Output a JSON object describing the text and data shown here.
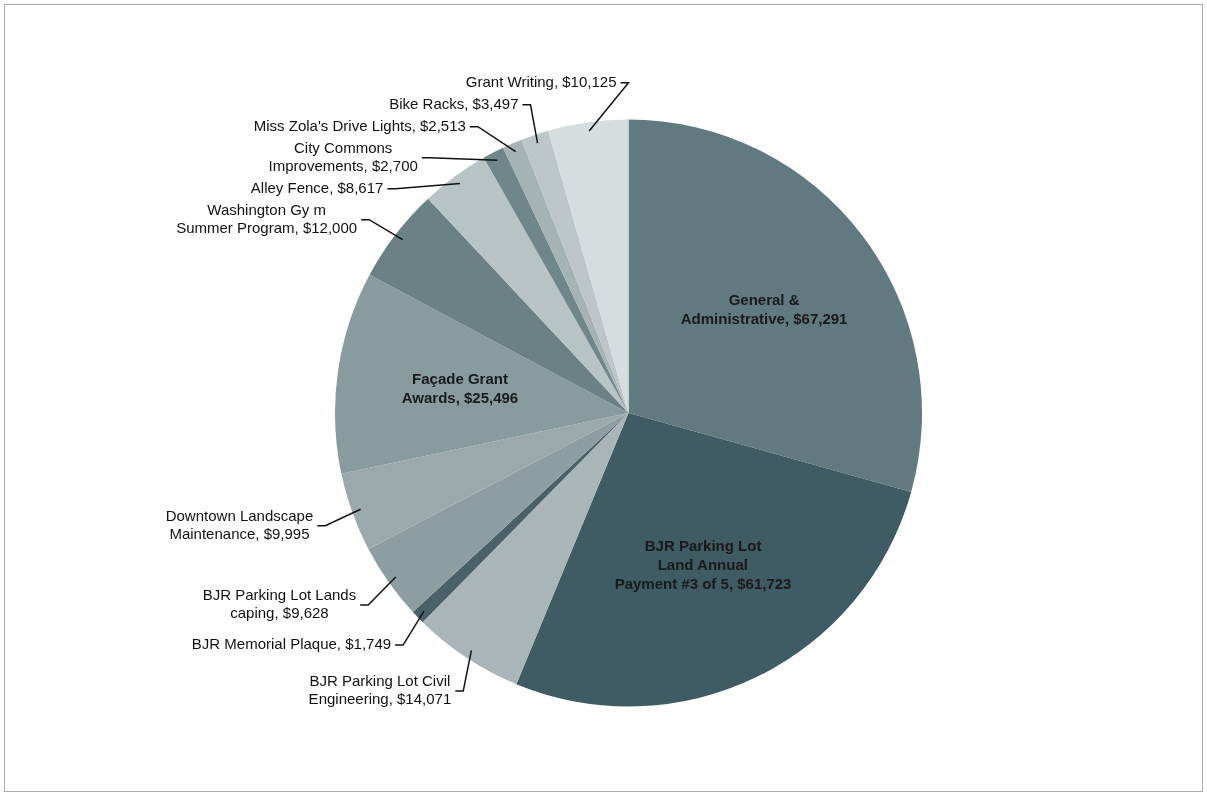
{
  "chart_data": {
    "type": "pie",
    "categories": [
      "General & Administrative",
      "BJR Parking Lot Land Annual Payment #3 of 5",
      "BJR Parking Lot Civil Engineering",
      "BJR Memorial Plaque",
      "BJR Parking Lot Lands caping",
      "Downtown Landscape Maintenance",
      "Façade Grant Awards",
      "Washington Gy m Summer Program",
      "Alley Fence",
      "City Commons Improvements",
      "Miss Zola's Drive Lights",
      "Bike Racks",
      "Grant Writing"
    ],
    "values": [
      67291,
      61723,
      14071,
      1749,
      9628,
      9995,
      25496,
      12000,
      8617,
      2700,
      2513,
      3497,
      10125
    ],
    "value_labels": [
      "$67,291",
      "$61,723",
      "$14,071",
      "$1,749",
      "$9,628",
      "$9,995",
      "$25,496",
      "$12,000",
      "$8,617",
      "$2,700",
      "$2,513",
      "$3,497",
      "$10,125"
    ],
    "colors": [
      "#607a80",
      "#3f5b64",
      "#a9b5b8",
      "#4a6167",
      "#8c9ea2",
      "#9aa9ac",
      "#889ca0",
      "#6b8186",
      "#b8c3c5",
      "#6f878b",
      "#a6b3b5",
      "#bcc6c8",
      "#d6dddf"
    ],
    "legend": false
  }
}
